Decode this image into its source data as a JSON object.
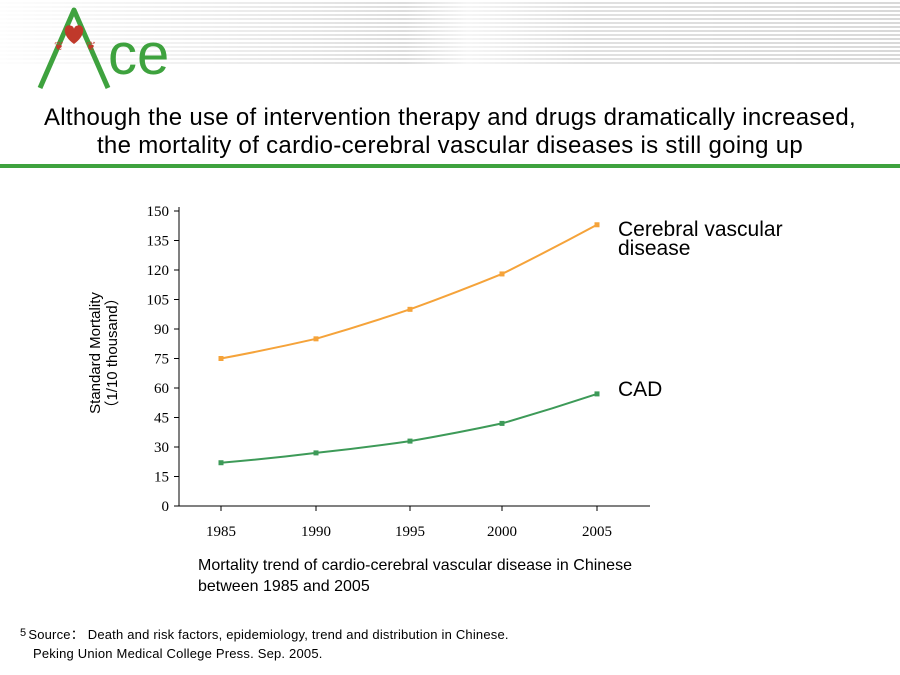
{
  "logo": {
    "text": "Ace",
    "color": "#3ea23e",
    "heart_color": "#c0392b",
    "icon": "heart-icon"
  },
  "headline": {
    "line1": "Although the use of intervention therapy and drugs dramatically increased,",
    "line2": "the mortality of cardio-cerebral vascular diseases is still going up"
  },
  "chart_data": {
    "type": "line",
    "x": [
      1985,
      1990,
      1995,
      2000,
      2005
    ],
    "series": [
      {
        "name": "Cerebral vascular disease",
        "color": "#f5a33a",
        "values": [
          75,
          85,
          100,
          118,
          143
        ]
      },
      {
        "name": "CAD",
        "color": "#3d9a58",
        "values": [
          22,
          27,
          33,
          42,
          57
        ]
      }
    ],
    "ylabel": [
      "Standard Mortality",
      "（1/10 thousand）"
    ],
    "ylim": [
      0,
      150
    ],
    "yticks": [
      0,
      15,
      30,
      45,
      60,
      75,
      90,
      105,
      120,
      135,
      150
    ],
    "grid": false,
    "legend_placement": "line-end labels, right"
  },
  "caption": {
    "line1": "Mortality trend of cardio-cerebral vascular disease in Chinese",
    "line2": "between 1985 and 2005"
  },
  "source": {
    "number": "5",
    "line1": "Source： Death and risk factors, epidemiology, trend and distribution in Chinese.",
    "line2": "Peking Union Medical College Press. Sep. 2005."
  }
}
